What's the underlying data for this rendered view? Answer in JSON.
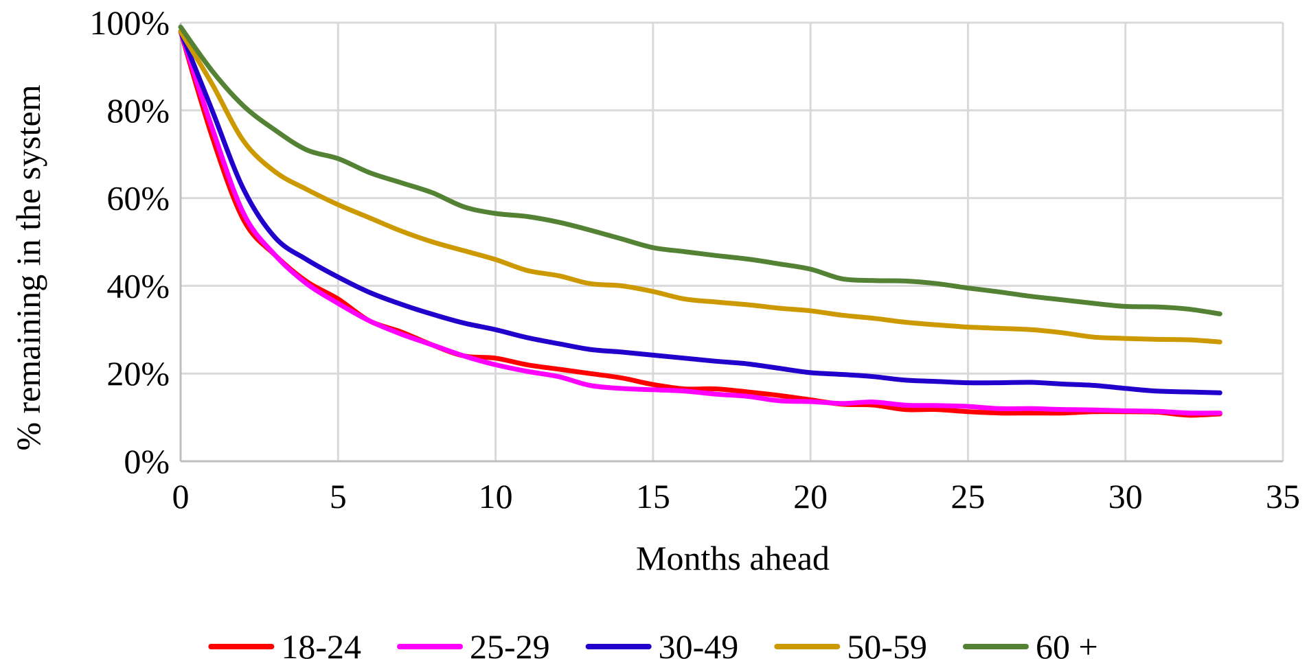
{
  "chart_data": {
    "type": "line",
    "title": "",
    "xlabel": "Months ahead",
    "ylabel": "% remaining in the system",
    "xlim": [
      0,
      35
    ],
    "ylim": [
      0,
      100
    ],
    "x_ticks": [
      "0",
      "5",
      "10",
      "15",
      "20",
      "25",
      "30",
      "35"
    ],
    "y_ticks": [
      "0%",
      "20%",
      "40%",
      "60%",
      "80%",
      "100%"
    ],
    "grid": true,
    "legend_position": "bottom",
    "x": [
      0,
      1,
      2,
      3,
      4,
      5,
      6,
      7,
      8,
      9,
      10,
      11,
      12,
      13,
      14,
      15,
      16,
      17,
      18,
      19,
      20,
      21,
      22,
      23,
      24,
      25,
      26,
      27,
      28,
      29,
      30,
      31,
      32,
      33
    ],
    "series": [
      {
        "name": "18-24",
        "color": "#ff0000",
        "values": [
          98,
          74,
          55,
          47,
          41,
          37,
          32,
          29.5,
          26.5,
          24,
          23.5,
          22,
          21,
          20,
          19,
          17.5,
          16.5,
          16.5,
          15.8,
          15,
          14,
          13,
          12.8,
          11.8,
          11.8,
          11.3,
          11,
          11,
          11,
          11.3,
          11.3,
          11.2,
          10.5,
          10.8
        ]
      },
      {
        "name": "25-29",
        "color": "#ff00ff",
        "values": [
          98,
          76,
          56.5,
          47,
          40.5,
          36,
          32,
          29,
          26.5,
          24,
          22,
          20.5,
          19.3,
          17.3,
          16.6,
          16.3,
          16,
          15.3,
          14.8,
          13.8,
          13.6,
          13.2,
          13.5,
          12.8,
          12.7,
          12.5,
          12,
          12,
          11.8,
          11.7,
          11.5,
          11.4,
          11,
          11
        ]
      },
      {
        "name": "30-49",
        "color": "#2200cc",
        "values": [
          98,
          80,
          62,
          51,
          46,
          42,
          38.5,
          35.8,
          33.5,
          31.5,
          30,
          28.2,
          26.8,
          25.5,
          24.9,
          24.2,
          23.5,
          22.8,
          22.2,
          21.2,
          20.2,
          19.8,
          19.3,
          18.5,
          18.2,
          17.9,
          17.9,
          18,
          17.6,
          17.3,
          16.6,
          16,
          15.8,
          15.6
        ]
      },
      {
        "name": "50-59",
        "color": "#cc9900",
        "values": [
          98,
          86,
          73,
          66,
          62,
          58.5,
          55.5,
          52.5,
          50,
          48,
          46,
          43.5,
          42.3,
          40.5,
          40,
          38.7,
          37,
          36.3,
          35.7,
          34.9,
          34.3,
          33.3,
          32.6,
          31.7,
          31.1,
          30.6,
          30.3,
          30,
          29.3,
          28.3,
          28,
          27.8,
          27.7,
          27.2
        ]
      },
      {
        "name": "60 +",
        "color": "#548235",
        "values": [
          99,
          89,
          81,
          75.5,
          71,
          69,
          65.8,
          63.5,
          61.2,
          58,
          56.5,
          55.8,
          54.5,
          52.7,
          50.7,
          48.7,
          47.8,
          46.9,
          46.1,
          45,
          43.8,
          41.6,
          41.2,
          41.1,
          40.5,
          39.5,
          38.6,
          37.6,
          36.8,
          36,
          35.3,
          35.2,
          34.7,
          33.6
        ]
      }
    ]
  }
}
